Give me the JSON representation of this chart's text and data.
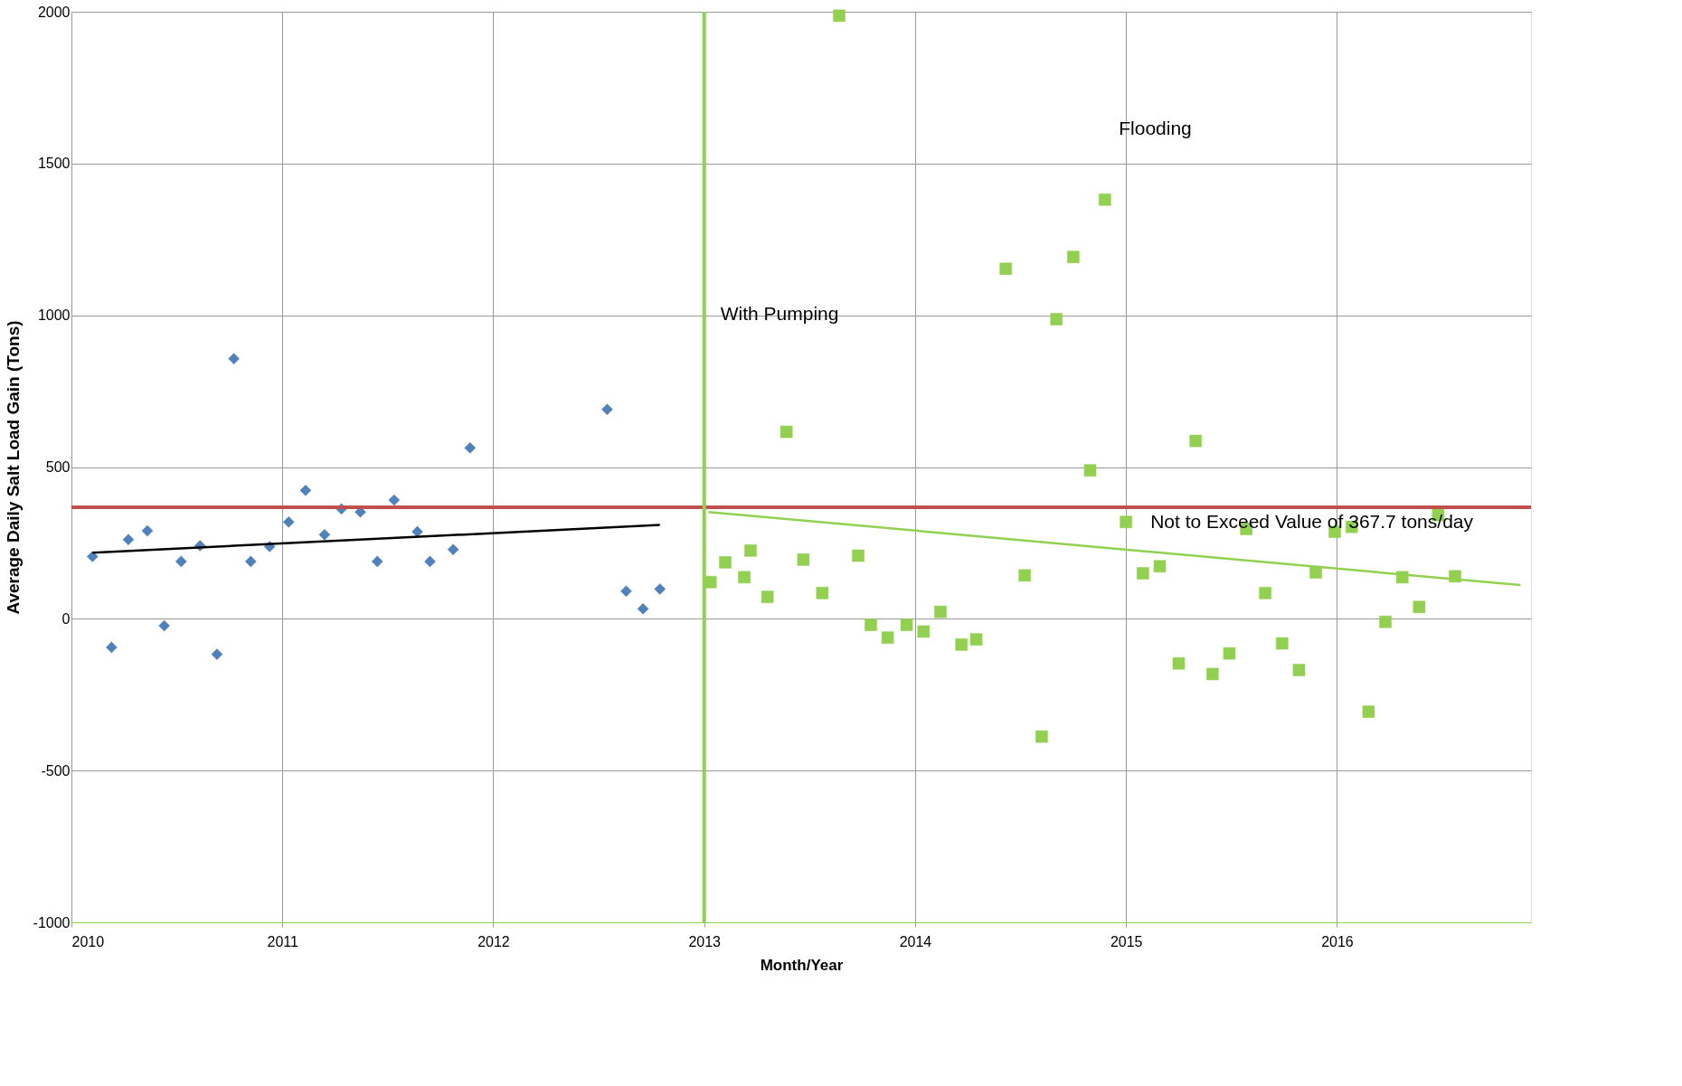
{
  "chart_data": {
    "type": "scatter",
    "xlabel": "Month/Year",
    "ylabel": "Average Daily Salt Load Gain (Tons)",
    "xlim": [
      2010,
      2016.92
    ],
    "xticks": [
      2010,
      2011,
      2012,
      2013,
      2014,
      2015,
      2016
    ],
    "ylim": [
      -1000,
      2000
    ],
    "yticks": [
      -1000,
      -500,
      0,
      500,
      1000,
      1500,
      2000
    ],
    "grid": true,
    "series": [
      {
        "color": "#4f81bd",
        "marker": "diamond",
        "x": [
          2010.1,
          2010.19,
          2010.27,
          2010.36,
          2010.44,
          2010.52,
          2010.61,
          2010.69,
          2010.77,
          2010.85,
          2010.94,
          2011.03,
          2011.11,
          2011.2,
          2011.28,
          2011.37,
          2011.45,
          2011.53,
          2011.64,
          2011.7,
          2011.81,
          2011.89,
          2012.54,
          2012.63,
          2012.71,
          2012.79
        ],
        "values": [
          205,
          -94,
          261,
          290,
          -23,
          189,
          241,
          -117,
          857,
          189,
          238,
          319,
          423,
          277,
          362,
          352,
          189,
          391,
          287,
          189,
          228,
          563,
          690,
          91,
          33,
          98
        ]
      },
      {
        "color": "#92d050",
        "marker": "square",
        "x": [
          2013.03,
          2013.1,
          2013.19,
          2013.22,
          2013.3,
          2013.39,
          2013.47,
          2013.56,
          2013.64,
          2013.73,
          2013.79,
          2013.87,
          2013.96,
          2014.04,
          2014.12,
          2014.22,
          2014.29,
          2014.43,
          2014.52,
          2014.6,
          2014.67,
          2014.75,
          2014.83,
          2014.9,
          2015.0,
          2015.08,
          2015.16,
          2015.25,
          2015.33,
          2015.41,
          2015.49,
          2015.57,
          2015.66,
          2015.74,
          2015.82,
          2015.9,
          2015.99,
          2016.07,
          2016.15,
          2016.23,
          2016.31,
          2016.39,
          2016.48,
          2016.56
        ],
        "values": [
          121,
          186,
          137,
          225,
          72,
          616,
          195,
          85,
          1987,
          208,
          -20,
          -62,
          -20,
          -42,
          23,
          -85,
          -68,
          1153,
          143,
          -388,
          987,
          1192,
          489,
          1381,
          319,
          150,
          173,
          -147,
          586,
          -182,
          -114,
          296,
          85,
          -81,
          -169,
          153,
          287,
          303,
          -306,
          -10,
          137,
          39,
          342,
          140
        ]
      },
      {
        "type": "line",
        "color": "#000000",
        "x": [
          2010.1,
          2012.79
        ],
        "values": [
          218,
          309
        ]
      },
      {
        "type": "line",
        "color": "#92d050",
        "x": [
          2013.02,
          2016.87
        ],
        "values": [
          352,
          111
        ]
      }
    ],
    "ref_lines": [
      {
        "axis": "y",
        "value": 367.7,
        "label": "Not to Exceed Value of 367.7 tons/day",
        "color": "#c0504d"
      },
      {
        "axis": "x",
        "value": 2013,
        "label": "With Pumping",
        "color": "#92d050"
      }
    ],
    "annotations": [
      "Flooding"
    ]
  }
}
